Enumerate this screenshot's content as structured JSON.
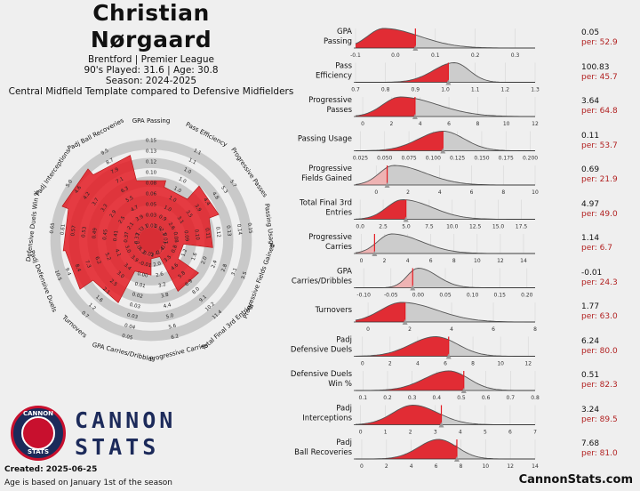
{
  "header": {
    "name_line1": "Christian",
    "name_line2": "Nørgaard",
    "team_league": "Brentford | Premier League",
    "played_age": "90's Played: 31.6 | Age: 30.8",
    "season": "Season: 2024-2025",
    "template": "Central Midfield Template compared to Defensive Midfielders"
  },
  "branding": {
    "logo_top": "CANNON",
    "logo_bottom": "STATS",
    "wordmark_line1": "CANNON",
    "wordmark_line2": "STATS",
    "created": "Created: 2025-06-25",
    "age_note": "Age is based on January 1st of the season",
    "site": "CannonStats.com"
  },
  "colors": {
    "accent": "#e31b23",
    "ring_grey": "#c9c9c9",
    "density_grey": "#cccccc",
    "density_light": "#f2b0b0",
    "percentile_text": "#b22222",
    "brand_navy": "#1c2a5a"
  },
  "chart_data": [
    {
      "type": "radar",
      "title": "",
      "rings": 5,
      "categories": [
        "GPA Passing",
        "Pass Efficiency",
        "Progressive Passes",
        "Passing Usage",
        "Progressive Fields Gained",
        "Total Final 3rd Entries",
        "Progressive Carries",
        "GPA Carries/Dribbles",
        "Turnovers",
        "Padj Defensive Duels",
        "Defensive Duels Win %",
        "Padj Interceptions",
        "Padj Ball Recoveries"
      ],
      "percentiles": [
        52.9,
        45.7,
        64.8,
        53.7,
        21.9,
        49.0,
        6.7,
        24.3,
        63.0,
        80.0,
        82.3,
        89.5,
        81.0
      ],
      "scale_labels": [
        [
          "0.15",
          "0.13",
          "0.12",
          "0.10",
          "0.08",
          "0.06",
          "0.05",
          "0.03",
          "0.01"
        ],
        [
          "1.1",
          "1.1",
          "1.0",
          "1.0",
          "1.0",
          "1.0",
          "1.0",
          "0.9",
          "0.9"
        ],
        [
          "5.7",
          "5.3",
          "4.8",
          "4.4",
          "3.9",
          "3.5",
          "3.1",
          "2.6",
          "2.2"
        ],
        [
          "0.15",
          "0.14",
          "0.13",
          "0.12",
          "0.11",
          "0.10",
          "0.09",
          "0.08",
          "0.07"
        ],
        [
          "3.5",
          "3.1",
          "2.8",
          "2.4",
          "2.0",
          "1.6",
          "1.2",
          "0.8",
          "0.4"
        ],
        [
          "11.4",
          "10.2",
          "9.1",
          "8.0",
          "6.9",
          "5.8",
          "4.6",
          "3.5",
          "2.4"
        ],
        [
          "6.2",
          "5.6",
          "5.0",
          "4.4",
          "3.8",
          "3.2",
          "2.6",
          "2.0",
          "1.4"
        ],
        [
          "0.05",
          "0.04",
          "0.03",
          "0.03",
          "0.02",
          "0.01",
          "0.00",
          "-0.01",
          "-0.02"
        ],
        [
          "0.7",
          "1.2",
          "1.6",
          "2.1",
          "2.5",
          "3.0",
          "3.4",
          "3.9",
          "4.3"
        ],
        [
          "10.5",
          "9.4",
          "8.4",
          "7.3",
          "6.2",
          "5.2",
          "4.1",
          "3.0",
          "2.0"
        ],
        [
          "0.65",
          "0.61",
          "0.57",
          "0.53",
          "0.49",
          "0.45",
          "0.41",
          "0.37",
          "0.33"
        ],
        [
          "5.0",
          "4.6",
          "4.2",
          "3.7",
          "3.3",
          "2.9",
          "2.5",
          "2.1",
          "1.7"
        ],
        [
          "9.5",
          "8.7",
          "7.9",
          "7.1",
          "6.3",
          "5.5",
          "4.7",
          "3.9",
          "3.1"
        ]
      ]
    },
    {
      "type": "area",
      "title": "",
      "metrics": [
        {
          "label": [
            "GPA",
            "Passing"
          ],
          "value": "0.05",
          "pct": "per: 52.9",
          "x": 0.05,
          "ticks": [
            "-0.1",
            "0.0",
            "0.1",
            "0.2",
            "0.3"
          ],
          "xlim": [
            -0.1,
            0.35
          ],
          "tickvals": [
            -0.1,
            0.0,
            0.1,
            0.2,
            0.3
          ],
          "mode": -0.03,
          "sl": 0.04,
          "sr": 0.09,
          "light": false
        },
        {
          "label": [
            "Pass",
            "Efficiency"
          ],
          "value": "100.83",
          "pct": "per: 45.7",
          "x": 1.01,
          "ticks": [
            "0.7",
            "0.8",
            "0.9",
            "1.0",
            "1.1",
            "1.2",
            "1.3"
          ],
          "xlim": [
            0.7,
            1.3
          ],
          "tickvals": [
            0.7,
            0.8,
            0.9,
            1.0,
            1.1,
            1.2,
            1.3
          ],
          "mode": 1.03,
          "sl": 0.07,
          "sr": 0.05,
          "light": false
        },
        {
          "label": [
            "Progressive",
            "Passes"
          ],
          "value": "3.64",
          "pct": "per: 64.8",
          "x": 3.64,
          "ticks": [
            "0",
            "2",
            "4",
            "6",
            "8",
            "10",
            "12"
          ],
          "xlim": [
            -0.5,
            12
          ],
          "tickvals": [
            0,
            2,
            4,
            6,
            8,
            10,
            12
          ],
          "mode": 2.6,
          "sl": 1.2,
          "sr": 2.6,
          "light": false
        },
        {
          "label": [
            "Passing Usage"
          ],
          "value": "0.11",
          "pct": "per: 53.7",
          "x": 0.11,
          "ticks": [
            "0.025",
            "0.050",
            "0.075",
            "0.100",
            "0.125",
            "0.150",
            "0.175",
            "0.200"
          ],
          "xlim": [
            0.02,
            0.205
          ],
          "tickvals": [
            0.025,
            0.05,
            0.075,
            0.1,
            0.125,
            0.15,
            0.175,
            0.2
          ],
          "mode": 0.11,
          "sl": 0.025,
          "sr": 0.022,
          "light": false
        },
        {
          "label": [
            "Progressive",
            "Fields Gained"
          ],
          "value": "0.69",
          "pct": "per: 21.9",
          "x": 0.69,
          "ticks": [
            "0",
            "2",
            "4",
            "6",
            "8",
            "10"
          ],
          "xlim": [
            -1.3,
            10
          ],
          "tickvals": [
            0,
            2,
            4,
            6,
            8,
            10
          ],
          "mode": 1.1,
          "sl": 0.9,
          "sr": 2.0,
          "light": true
        },
        {
          "label": [
            "Total Final 3rd",
            "Entries"
          ],
          "value": "4.97",
          "pct": "per: 49.0",
          "x": 4.97,
          "ticks": [
            "0.0",
            "2.5",
            "5.0",
            "7.5",
            "10.0",
            "12.5",
            "15.0",
            "17.5"
          ],
          "xlim": [
            -0.5,
            19
          ],
          "tickvals": [
            0,
            2.5,
            5,
            7.5,
            10,
            12.5,
            15,
            17.5
          ],
          "mode": 4.6,
          "sl": 1.7,
          "sr": 3.2,
          "light": false
        },
        {
          "label": [
            "Progressive",
            "Carries"
          ],
          "value": "1.14",
          "pct": "per: 6.7",
          "x": 1.14,
          "ticks": [
            "0",
            "2",
            "4",
            "6",
            "8",
            "10",
            "12",
            "14"
          ],
          "xlim": [
            -0.5,
            15
          ],
          "tickvals": [
            0,
            2,
            4,
            6,
            8,
            10,
            12,
            14
          ],
          "mode": 2.6,
          "sl": 1.2,
          "sr": 2.6,
          "light": true
        },
        {
          "label": [
            "GPA",
            "Carries/Dribbles"
          ],
          "value": "-0.01",
          "pct": "per: 24.3",
          "x": -0.01,
          "ticks": [
            "-0.10",
            "-0.05",
            "0.00",
            "0.05",
            "0.10",
            "0.15",
            "0.20"
          ],
          "xlim": [
            -0.115,
            0.215
          ],
          "tickvals": [
            -0.1,
            -0.05,
            0,
            0.05,
            0.1,
            0.15,
            0.2
          ],
          "mode": 0.0,
          "sl": 0.02,
          "sr": 0.035,
          "light": true
        },
        {
          "label": [
            "Turnovers"
          ],
          "value": "1.77",
          "pct": "per: 63.0",
          "x": 1.77,
          "ticks": [
            "0",
            "2",
            "4",
            "6",
            "8"
          ],
          "xlim": [
            -0.6,
            8
          ],
          "tickvals": [
            0,
            2,
            4,
            6,
            8
          ],
          "mode": 1.6,
          "sl": 1.0,
          "sr": 1.7,
          "light": false
        },
        {
          "label": [
            "Padj",
            "Defensive Duels"
          ],
          "value": "6.24",
          "pct": "per: 80.0",
          "x": 6.24,
          "ticks": [
            "0",
            "2",
            "4",
            "6",
            "8",
            "10",
            "12"
          ],
          "xlim": [
            -0.5,
            12.5
          ],
          "tickvals": [
            0,
            2,
            4,
            6,
            8,
            10,
            12
          ],
          "mode": 5.3,
          "sl": 1.8,
          "sr": 1.6,
          "light": false
        },
        {
          "label": [
            "Defensive Duels",
            "Win %"
          ],
          "value": "0.51",
          "pct": "per: 82.3",
          "x": 0.51,
          "ticks": [
            "0.1",
            "0.2",
            "0.3",
            "0.4",
            "0.5",
            "0.6",
            "0.7",
            "0.8"
          ],
          "xlim": [
            0.07,
            0.8
          ],
          "tickvals": [
            0.1,
            0.2,
            0.3,
            0.4,
            0.5,
            0.6,
            0.7,
            0.8
          ],
          "mode": 0.45,
          "sl": 0.1,
          "sr": 0.08,
          "light": false
        },
        {
          "label": [
            "Padj",
            "Interceptions"
          ],
          "value": "3.24",
          "pct": "per: 89.5",
          "x": 3.24,
          "ticks": [
            "0",
            "1",
            "2",
            "3",
            "4",
            "5",
            "6",
            "7"
          ],
          "xlim": [
            -0.2,
            7
          ],
          "tickvals": [
            0,
            1,
            2,
            3,
            4,
            5,
            6,
            7
          ],
          "mode": 2.1,
          "sl": 0.8,
          "sr": 1.0,
          "light": false
        },
        {
          "label": [
            "Padj",
            "Ball Recoveries"
          ],
          "value": "7.68",
          "pct": "per: 81.0",
          "x": 7.68,
          "ticks": [
            "0",
            "2",
            "4",
            "6",
            "8",
            "10",
            "12",
            "14"
          ],
          "xlim": [
            -0.5,
            14
          ],
          "tickvals": [
            0,
            2,
            4,
            6,
            8,
            10,
            12,
            14
          ],
          "mode": 6.2,
          "sl": 1.6,
          "sr": 1.5,
          "light": false
        }
      ]
    }
  ]
}
